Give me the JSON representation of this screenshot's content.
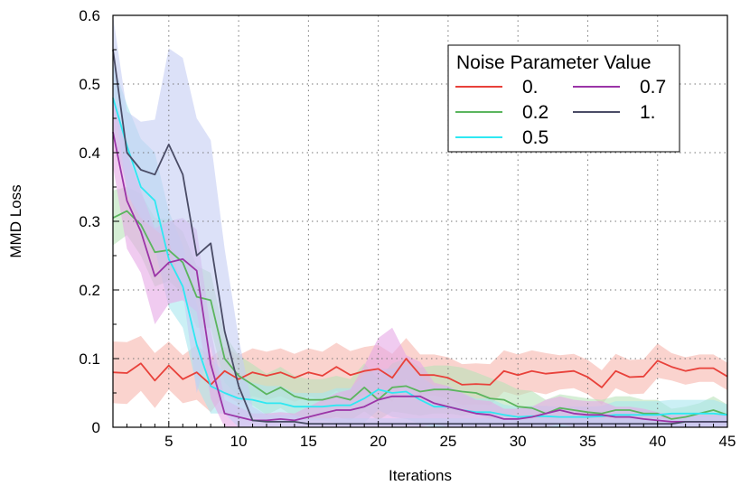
{
  "chart_data": {
    "type": "line",
    "xlabel": "Iterations",
    "ylabel": "MMD Loss",
    "xlim": [
      1,
      45
    ],
    "ylim": [
      0,
      0.6
    ],
    "xticks": [
      5,
      10,
      15,
      20,
      25,
      30,
      35,
      40,
      45
    ],
    "yticks": [
      0,
      0.1,
      0.2,
      0.3,
      0.4,
      0.5,
      0.6
    ],
    "ytick_labels": [
      "0",
      "0.1",
      "0.2",
      "0.3",
      "0.4",
      "0.5",
      "0.6"
    ],
    "grid": true,
    "legend_title": "Noise Parameter Value",
    "legend_position": "top-right",
    "series": [
      {
        "name": "0.",
        "color": "#e8413a",
        "band_color": "#f6b5ae",
        "values": [
          0.08,
          0.079,
          0.093,
          0.068,
          0.09,
          0.07,
          0.08,
          0.062,
          0.082,
          0.07,
          0.08,
          0.075,
          0.08,
          0.072,
          0.08,
          0.075,
          0.088,
          0.076,
          0.082,
          0.085,
          0.072,
          0.1,
          0.076,
          0.076,
          0.072,
          0.062,
          0.063,
          0.062,
          0.082,
          0.076,
          0.082,
          0.078,
          0.08,
          0.082,
          0.073,
          0.058,
          0.082,
          0.073,
          0.074,
          0.097,
          0.088,
          0.082,
          0.086,
          0.086,
          0.074
        ],
        "band": [
          0.045,
          0.045,
          0.04,
          0.04,
          0.035,
          0.035,
          0.04,
          0.04,
          0.035,
          0.035,
          0.035,
          0.035,
          0.035,
          0.035,
          0.035,
          0.035,
          0.035,
          0.035,
          0.035,
          0.035,
          0.035,
          0.03,
          0.03,
          0.03,
          0.03,
          0.03,
          0.03,
          0.03,
          0.03,
          0.03,
          0.03,
          0.03,
          0.025,
          0.025,
          0.025,
          0.025,
          0.025,
          0.025,
          0.025,
          0.025,
          0.02,
          0.02,
          0.02,
          0.02,
          0.02
        ]
      },
      {
        "name": "0.2",
        "color": "#5bb55e",
        "band_color": "#b9e3b9",
        "values": [
          0.305,
          0.315,
          0.295,
          0.255,
          0.258,
          0.24,
          0.19,
          0.185,
          0.1,
          0.075,
          0.062,
          0.048,
          0.058,
          0.045,
          0.04,
          0.04,
          0.045,
          0.04,
          0.058,
          0.04,
          0.058,
          0.06,
          0.052,
          0.055,
          0.055,
          0.052,
          0.05,
          0.042,
          0.04,
          0.03,
          0.028,
          0.02,
          0.028,
          0.025,
          0.022,
          0.02,
          0.025,
          0.025,
          0.02,
          0.02,
          0.012,
          0.015,
          0.02,
          0.025,
          0.018
        ],
        "band": [
          0.04,
          0.035,
          0.045,
          0.05,
          0.045,
          0.045,
          0.045,
          0.04,
          0.035,
          0.03,
          0.03,
          0.03,
          0.03,
          0.03,
          0.03,
          0.03,
          0.03,
          0.03,
          0.035,
          0.03,
          0.035,
          0.04,
          0.035,
          0.035,
          0.035,
          0.035,
          0.03,
          0.03,
          0.025,
          0.025,
          0.025,
          0.02,
          0.02,
          0.02,
          0.02,
          0.02,
          0.02,
          0.02,
          0.02,
          0.02,
          0.015,
          0.015,
          0.015,
          0.02,
          0.015
        ]
      },
      {
        "name": "0.5",
        "color": "#2ee8f2",
        "band_color": "#a8e6ee",
        "values": [
          0.48,
          0.41,
          0.35,
          0.33,
          0.245,
          0.205,
          0.12,
          0.06,
          0.05,
          0.042,
          0.04,
          0.035,
          0.035,
          0.03,
          0.03,
          0.03,
          0.032,
          0.032,
          0.042,
          0.055,
          0.05,
          0.052,
          0.04,
          0.03,
          0.03,
          0.025,
          0.022,
          0.022,
          0.018,
          0.015,
          0.016,
          0.016,
          0.015,
          0.015,
          0.015,
          0.016,
          0.018,
          0.018,
          0.018,
          0.018,
          0.02,
          0.02,
          0.02,
          0.02,
          0.018
        ],
        "band": [
          0.05,
          0.06,
          0.07,
          0.07,
          0.07,
          0.06,
          0.06,
          0.04,
          0.03,
          0.03,
          0.025,
          0.025,
          0.025,
          0.02,
          0.02,
          0.02,
          0.025,
          0.025,
          0.035,
          0.03,
          0.035,
          0.04,
          0.035,
          0.03,
          0.03,
          0.025,
          0.02,
          0.02,
          0.015,
          0.015,
          0.015,
          0.015,
          0.015,
          0.015,
          0.015,
          0.015,
          0.02,
          0.02,
          0.02,
          0.02,
          0.02,
          0.02,
          0.02,
          0.02,
          0.015
        ]
      },
      {
        "name": "0.7",
        "color": "#9b35a7",
        "band_color": "#e6a9e6",
        "values": [
          0.43,
          0.33,
          0.285,
          0.22,
          0.24,
          0.245,
          0.228,
          0.092,
          0.02,
          0.015,
          0.01,
          0.01,
          0.012,
          0.01,
          0.015,
          0.02,
          0.025,
          0.025,
          0.03,
          0.04,
          0.045,
          0.045,
          0.045,
          0.035,
          0.03,
          0.025,
          0.02,
          0.018,
          0.012,
          0.012,
          0.015,
          0.02,
          0.025,
          0.02,
          0.018,
          0.018,
          0.015,
          0.015,
          0.012,
          0.01,
          0.008,
          0.008,
          0.008,
          0.008,
          0.008
        ],
        "band": [
          0.05,
          0.07,
          0.06,
          0.07,
          0.06,
          0.06,
          0.06,
          0.05,
          0.02,
          0.015,
          0.01,
          0.01,
          0.01,
          0.01,
          0.015,
          0.02,
          0.025,
          0.03,
          0.06,
          0.09,
          0.1,
          0.06,
          0.05,
          0.03,
          0.03,
          0.025,
          0.02,
          0.02,
          0.015,
          0.015,
          0.015,
          0.02,
          0.02,
          0.02,
          0.02,
          0.02,
          0.015,
          0.015,
          0.015,
          0.012,
          0.01,
          0.01,
          0.01,
          0.01,
          0.01
        ]
      },
      {
        "name": "1.",
        "color": "#4a4c66",
        "band_color": "#c5cdf4",
        "values": [
          0.55,
          0.4,
          0.375,
          0.368,
          0.412,
          0.368,
          0.25,
          0.268,
          0.14,
          0.06,
          0.01,
          0.008,
          0.008,
          0.008,
          0.005,
          0.005,
          0.005,
          0.005,
          0.005,
          0.005,
          0.005,
          0.005,
          0.005,
          0.005,
          0.005,
          0.005,
          0.005,
          0.005,
          0.005,
          0.005,
          0.005,
          0.005,
          0.005,
          0.005,
          0.005,
          0.005,
          0.005,
          0.005,
          0.005,
          0.005,
          0.005,
          0.008,
          0.008,
          0.008,
          0.008
        ],
        "band": [
          0.06,
          0.06,
          0.07,
          0.08,
          0.14,
          0.17,
          0.2,
          0.15,
          0.12,
          0.07,
          0.02,
          0.01,
          0.01,
          0.01,
          0.008,
          0.008,
          0.008,
          0.008,
          0.008,
          0.008,
          0.008,
          0.008,
          0.008,
          0.008,
          0.008,
          0.008,
          0.008,
          0.008,
          0.008,
          0.008,
          0.008,
          0.008,
          0.008,
          0.008,
          0.008,
          0.008,
          0.008,
          0.008,
          0.008,
          0.008,
          0.008,
          0.008,
          0.008,
          0.008,
          0.008
        ]
      }
    ]
  }
}
